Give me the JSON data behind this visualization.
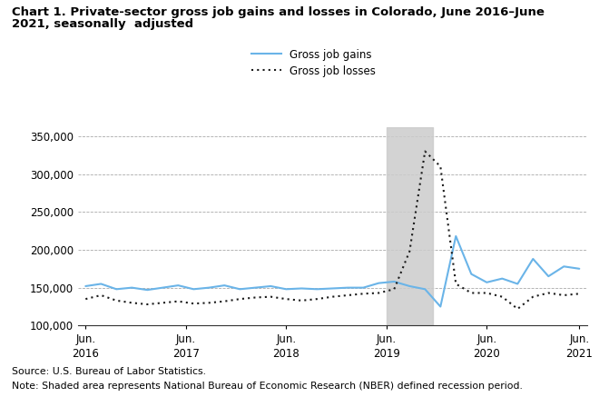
{
  "title_line1": "Chart 1. Private-sector gross job gains and losses in Colorado, June 2016–June",
  "title_line2": "2021, seasonally  adjusted",
  "source_text": "Source: U.S. Bureau of Labor Statistics.",
  "note_text": "Note: Shaded area represents National Bureau of Economic Research (NBER) defined recession period.",
  "legend_gains": "Gross job gains",
  "legend_losses": "Gross job losses",
  "ylim": [
    100000,
    362000
  ],
  "yticks": [
    100000,
    150000,
    200000,
    250000,
    300000,
    350000
  ],
  "ytick_labels": [
    "100,000",
    "150,000",
    "200,000",
    "250,000",
    "300,000",
    "350,000"
  ],
  "recession_xstart": 19.5,
  "recession_xend": 22.5,
  "gains_color": "#6ab4e8",
  "losses_color": "#1a1a1a",
  "background_color": "#ffffff",
  "grid_color": "#aaaaaa",
  "gains": [
    152000,
    155000,
    148000,
    150000,
    147000,
    150000,
    153000,
    148000,
    150000,
    153000,
    148000,
    150000,
    152000,
    148000,
    149000,
    148000,
    149000,
    150000,
    150000,
    156000,
    158000,
    152000,
    148000,
    125000,
    218000,
    168000,
    157000,
    162000,
    155000,
    188000,
    165000,
    178000,
    175000
  ],
  "losses": [
    135000,
    140000,
    133000,
    130000,
    128000,
    130000,
    132000,
    129000,
    130000,
    132000,
    135000,
    137000,
    138000,
    135000,
    133000,
    135000,
    138000,
    140000,
    142000,
    143000,
    148000,
    198000,
    330000,
    310000,
    155000,
    143000,
    143000,
    138000,
    122000,
    138000,
    143000,
    140000,
    142000
  ],
  "n_points": 33,
  "xtick_positions": [
    0,
    6.5,
    13,
    19.5,
    26,
    32
  ],
  "xtick_labels": [
    "Jun.\n2016",
    "Jun.\n2017",
    "Jun.\n2018",
    "Jun.\n2019",
    "Jun.\n2020",
    "Jun.\n2021"
  ]
}
